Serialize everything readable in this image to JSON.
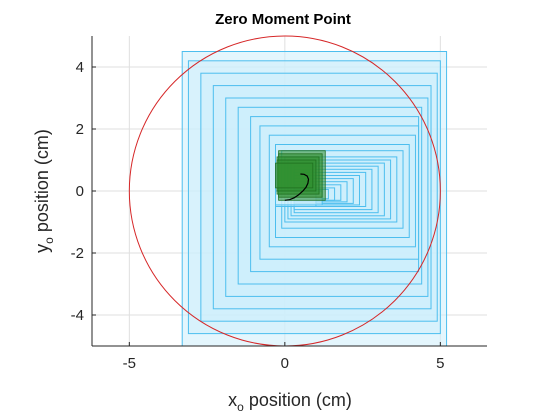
{
  "chart_data": {
    "type": "scatter",
    "title": "Zero Moment Point",
    "xlabel": {
      "main": "x",
      "sub": "o",
      "rest": " position (cm)"
    },
    "ylabel": {
      "main": "y",
      "sub": "o",
      "rest": " position (cm)"
    },
    "xlim": [
      -6.2,
      6.5
    ],
    "ylim": [
      -5,
      5
    ],
    "xticks": [
      -5,
      0,
      5
    ],
    "xtick_labels": [
      "-5",
      "0",
      "5"
    ],
    "yticks": [
      -4,
      -2,
      0,
      2,
      4
    ],
    "ytick_labels": [
      "-4",
      "-2",
      "0",
      "2",
      "4"
    ],
    "grid": true,
    "colors": {
      "circle": "#d62728",
      "support_fill": "#cdeffc",
      "support_edge": "#4dbeee",
      "foot_fill": "#2f8f2f",
      "foot_edge": "#1f6f1f",
      "zmp_line": "#000000"
    },
    "circle": {
      "cx": 0,
      "cy": 0,
      "r": 5
    },
    "support_polygons": [
      [
        -3.3,
        5.2,
        -5.0,
        4.5
      ],
      [
        -3.1,
        5.0,
        -4.6,
        4.2
      ],
      [
        -2.7,
        4.9,
        -4.2,
        3.8
      ],
      [
        -2.3,
        4.7,
        -3.8,
        3.4
      ],
      [
        -1.9,
        4.6,
        -3.4,
        3.0
      ],
      [
        -1.5,
        4.4,
        -3.0,
        2.7
      ],
      [
        -1.1,
        4.3,
        -2.6,
        2.4
      ],
      [
        -0.8,
        4.3,
        -2.2,
        2.1
      ],
      [
        -0.5,
        4.2,
        -1.8,
        1.8
      ],
      [
        -0.3,
        4.0,
        -1.5,
        1.5
      ],
      [
        -0.1,
        3.8,
        -1.2,
        1.3
      ],
      [
        0.0,
        3.6,
        -1.0,
        1.1
      ],
      [
        0.1,
        3.4,
        -0.9,
        1.0
      ],
      [
        0.2,
        3.2,
        -0.8,
        0.9
      ],
      [
        0.3,
        3.0,
        -0.7,
        0.8
      ],
      [
        0.3,
        2.8,
        -0.6,
        0.7
      ],
      [
        0.3,
        2.6,
        -0.5,
        0.6
      ],
      [
        0.3,
        2.4,
        -0.45,
        0.5
      ],
      [
        0.3,
        2.2,
        -0.4,
        0.4
      ],
      [
        0.3,
        2.0,
        -0.35,
        0.3
      ],
      [
        0.3,
        1.8,
        -0.3,
        0.2
      ],
      [
        0.3,
        1.6,
        -0.3,
        0.1
      ],
      [
        0.3,
        1.4,
        -0.25,
        0.05
      ],
      [
        -0.3,
        1.0,
        -0.5,
        0.0
      ],
      [
        -0.3,
        1.2,
        -0.45,
        0.0
      ]
    ],
    "foot_polygons": [
      [
        -0.2,
        1.3,
        -0.3,
        1.3
      ],
      [
        -0.2,
        1.2,
        -0.2,
        1.2
      ],
      [
        -0.25,
        1.1,
        -0.1,
        1.1
      ],
      [
        -0.25,
        1.0,
        0.0,
        1.0
      ],
      [
        -0.3,
        0.9,
        0.1,
        0.9
      ]
    ],
    "zmp_path": {
      "x": [
        0.0,
        0.15,
        0.3,
        0.45,
        0.58,
        0.68,
        0.74,
        0.76,
        0.72,
        0.62,
        0.5
      ],
      "y": [
        -0.3,
        -0.28,
        -0.22,
        -0.12,
        0.0,
        0.12,
        0.25,
        0.38,
        0.48,
        0.54,
        0.55
      ]
    }
  }
}
